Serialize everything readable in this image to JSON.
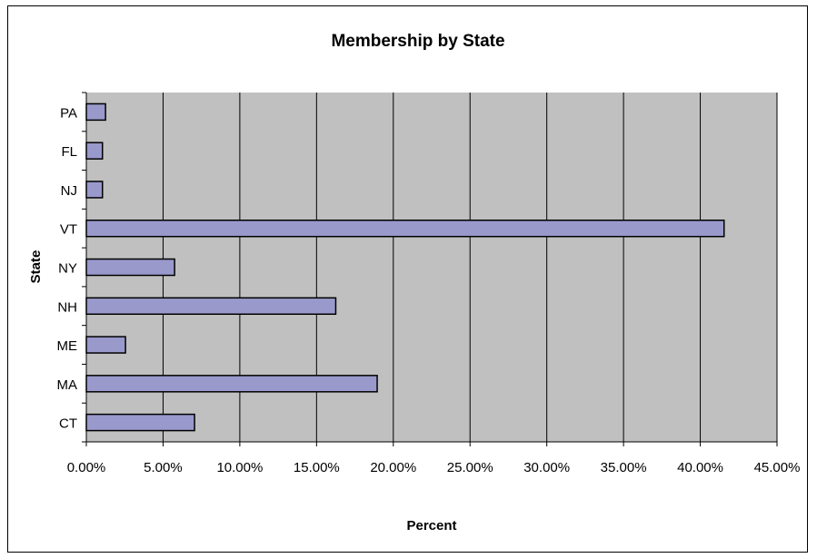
{
  "chart_data": {
    "type": "bar",
    "orientation": "horizontal",
    "title": "Membership by State",
    "xlabel": "Percent",
    "ylabel": "State",
    "categories": [
      "CT",
      "MA",
      "ME",
      "NH",
      "NY",
      "VT",
      "NJ",
      "FL",
      "PA"
    ],
    "values": [
      0.0705,
      0.1895,
      0.0255,
      0.1625,
      0.0575,
      0.4155,
      0.0105,
      0.0105,
      0.0125
    ],
    "xlim": [
      0,
      0.45
    ],
    "xticks": [
      "0.00%",
      "5.00%",
      "10.00%",
      "15.00%",
      "20.00%",
      "25.00%",
      "30.00%",
      "35.00%",
      "40.00%",
      "45.00%"
    ],
    "grid": true,
    "legend": "none",
    "colors": {
      "bar": "#9999cc",
      "plot_background": "#c0c0c0",
      "gridline": "#000000"
    }
  }
}
